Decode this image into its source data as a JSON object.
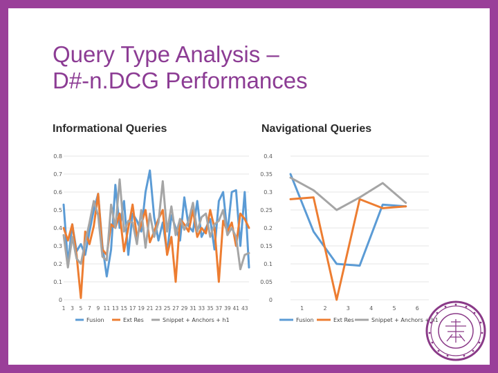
{
  "slide": {
    "title_line1": "Query Type Analysis –",
    "title_line2": "D#-n.DCG Performances"
  },
  "charts": {
    "informational_heading": "Informational Queries",
    "navigational_heading": "Navigational Queries"
  },
  "colors": {
    "frame": "#9a3f99",
    "title": "#8c3c94",
    "fusion": "#5b9bd5",
    "ext_res": "#ed7d31",
    "snippet": "#a5a5a5",
    "seal": "#8a3a88"
  },
  "chart_data": [
    {
      "type": "line",
      "title": "Informational Queries",
      "x_tick_labels": [
        "1",
        "3",
        "5",
        "7",
        "9",
        "11",
        "13",
        "15",
        "17",
        "19",
        "21",
        "23",
        "25",
        "27",
        "29",
        "31",
        "33",
        "35",
        "37",
        "39",
        "41",
        "43"
      ],
      "y_tick_labels": [
        "0",
        "0.1",
        "0.2",
        "0.3",
        "0.4",
        "0.5",
        "0.6",
        "0.7",
        "0.8"
      ],
      "ylim": [
        0,
        0.8
      ],
      "grid": true,
      "legend": "bottom",
      "x": [
        1,
        2,
        3,
        4,
        5,
        6,
        7,
        8,
        9,
        10,
        11,
        12,
        13,
        14,
        15,
        16,
        17,
        18,
        19,
        20,
        21,
        22,
        23,
        24,
        25,
        26,
        27,
        28,
        29,
        30,
        31,
        32,
        33,
        34,
        35,
        36,
        37,
        38,
        39,
        40,
        41,
        42,
        43,
        44
      ],
      "series": [
        {
          "name": "Fusion",
          "color_key": "fusion",
          "values": [
            0.53,
            0.2,
            0.42,
            0.27,
            0.31,
            0.25,
            0.38,
            0.5,
            0.59,
            0.3,
            0.13,
            0.28,
            0.64,
            0.4,
            0.55,
            0.25,
            0.48,
            0.44,
            0.38,
            0.6,
            0.72,
            0.46,
            0.33,
            0.43,
            0.26,
            0.47,
            0.4,
            0.33,
            0.57,
            0.41,
            0.38,
            0.55,
            0.35,
            0.4,
            0.45,
            0.28,
            0.55,
            0.6,
            0.37,
            0.6,
            0.61,
            0.3,
            0.6,
            0.18
          ]
        },
        {
          "name": "Ext Res",
          "color_key": "ext_res",
          "values": [
            0.4,
            0.33,
            0.42,
            0.25,
            0.01,
            0.38,
            0.31,
            0.41,
            0.59,
            0.28,
            0.25,
            0.42,
            0.4,
            0.48,
            0.27,
            0.4,
            0.53,
            0.35,
            0.42,
            0.5,
            0.32,
            0.38,
            0.45,
            0.5,
            0.25,
            0.35,
            0.1,
            0.45,
            0.42,
            0.38,
            0.5,
            0.35,
            0.4,
            0.37,
            0.5,
            0.4,
            0.1,
            0.44,
            0.38,
            0.43,
            0.3,
            0.48,
            0.45,
            0.4
          ]
        },
        {
          "name": "Snippet + Anchors + h1",
          "color_key": "snippet",
          "values": [
            0.36,
            0.18,
            0.35,
            0.23,
            0.2,
            0.32,
            0.43,
            0.55,
            0.47,
            0.24,
            0.22,
            0.53,
            0.4,
            0.67,
            0.38,
            0.44,
            0.43,
            0.31,
            0.5,
            0.29,
            0.48,
            0.35,
            0.43,
            0.66,
            0.38,
            0.52,
            0.36,
            0.45,
            0.39,
            0.44,
            0.54,
            0.38,
            0.46,
            0.48,
            0.35,
            0.42,
            0.44,
            0.5,
            0.36,
            0.4,
            0.35,
            0.17,
            0.25,
            0.26
          ]
        }
      ]
    },
    {
      "type": "line",
      "title": "Navigational Queries",
      "categories": [
        "1",
        "2",
        "3",
        "4",
        "5",
        "6"
      ],
      "y_tick_labels": [
        "0",
        "0.05",
        "0.1",
        "0.15",
        "0.2",
        "0.25",
        "0.3",
        "0.35",
        "0.4"
      ],
      "ylim": [
        0,
        0.4
      ],
      "grid": true,
      "legend": "bottom",
      "series": [
        {
          "name": "Fusion",
          "color_key": "fusion",
          "values": [
            0.35,
            0.19,
            0.1,
            0.095,
            0.265,
            0.26
          ]
        },
        {
          "name": "Ext Res",
          "color_key": "ext_res",
          "values": [
            0.28,
            0.285,
            0.0,
            0.28,
            0.255,
            0.26
          ]
        },
        {
          "name": "Snippet + Anchors + h1",
          "color_key": "snippet",
          "values": [
            0.34,
            0.305,
            0.25,
            0.285,
            0.325,
            0.27
          ]
        }
      ]
    }
  ]
}
